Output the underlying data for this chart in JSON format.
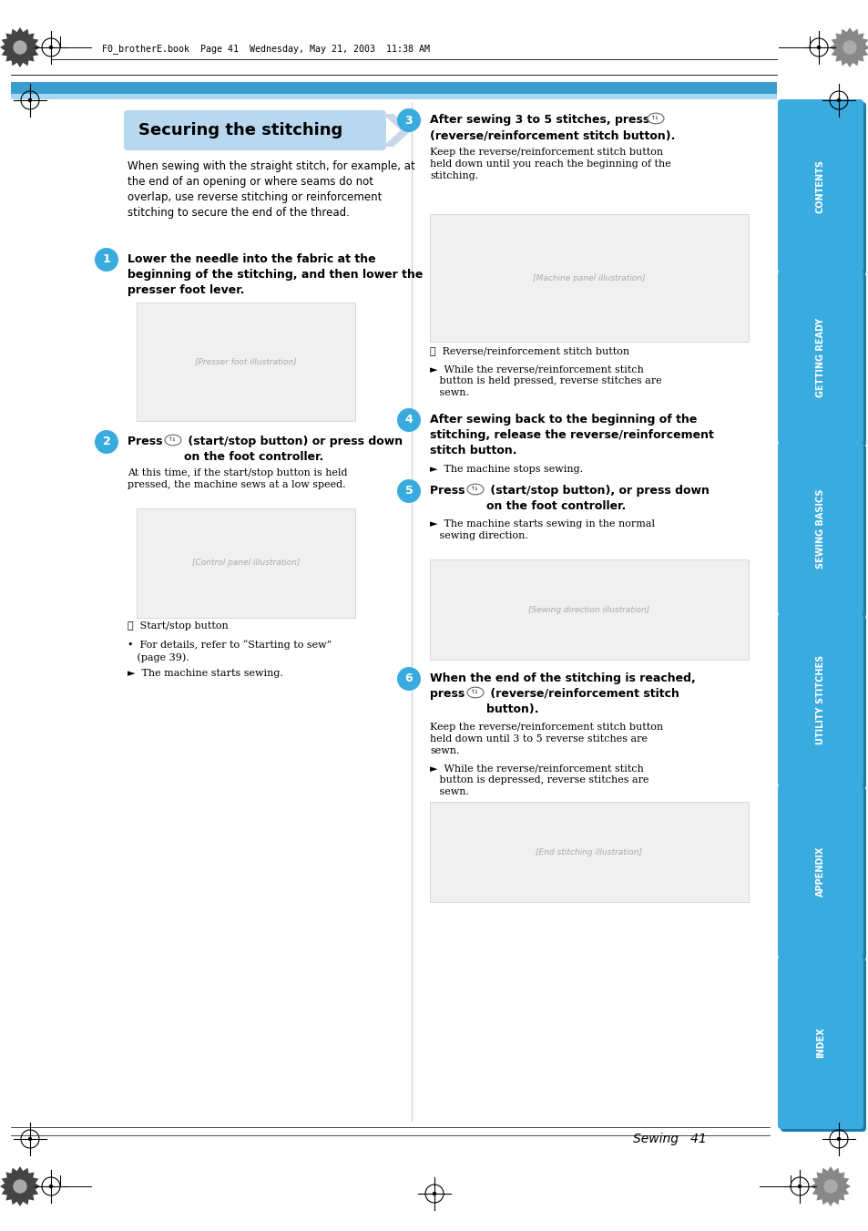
{
  "page_bg": "#ffffff",
  "header_text": "F0_brotherE.book  Page 41  Wednesday, May 21, 2003  11:38 AM",
  "sidebar_tabs": [
    "CONTENTS",
    "GETTING READY",
    "SEWING BASICS",
    "UTILITY STITCHES",
    "APPENDIX",
    "INDEX"
  ],
  "sidebar_color": "#3aabdf",
  "sidebar_shadow": "#1a7aaa",
  "sidebar_text_color": "#ffffff",
  "title_box_color": "#b8d8f0",
  "title_box_text": "Securing the stitching",
  "footer_text": "Sewing   41",
  "step_circle_color": "#3aabdf",
  "step_text_color": "#ffffff",
  "intro_text": "When sewing with the straight stitch, for example, at\nthe end of an opening or where seams do not\noverlap, use reverse stitching or reinforcement\nstitching to secure the end of the thread.",
  "step1_bold": "Lower the needle into the fabric at the\nbeginning of the stitching, and then lower the\npresser foot lever.",
  "step2_bold": "Press  ⓘ  (start/stop button) or press down\non the foot controller.",
  "step2_sub": "At this time, if the start/stop button is held\npressed, the machine sews at a low speed.",
  "step2_note": "①  Start/stop button",
  "step2_bullet": "•  For details, refer to “Starting to sew”\n   (page 39).",
  "step2_arrow": "►  The machine starts sewing.",
  "step3_bold": "After sewing 3 to 5 stitches, press  ⓘ\n(reverse/reinforcement stitch button).",
  "step3_sub": "Keep the reverse/reinforcement stitch button\nheld down until you reach the beginning of the\nstitching.",
  "step3_note": "①  Reverse/reinforcement stitch button",
  "step3_arrow": "►  While the reverse/reinforcement stitch\n   button is held pressed, reverse stitches are\n   sewn.",
  "step4_bold": "After sewing back to the beginning of the\nstitching, release the reverse/reinforcement\nstitch button.",
  "step4_arrow": "►  The machine stops sewing.",
  "step5_bold": "Press  ⓘ  (start/stop button), or press down\non the foot controller.",
  "step5_arrow": "►  The machine starts sewing in the normal\n   sewing direction.",
  "step6_bold": "When the end of the stitching is reached,\npress  ⓘ  (reverse/reinforcement stitch\nbutton).",
  "step6_sub": "Keep the reverse/reinforcement stitch button\nheld down until 3 to 5 reverse stitches are\nsewn.",
  "step6_arrow": "►  While the reverse/reinforcement stitch\n   button is depressed, reverse stitches are\n   sewn."
}
